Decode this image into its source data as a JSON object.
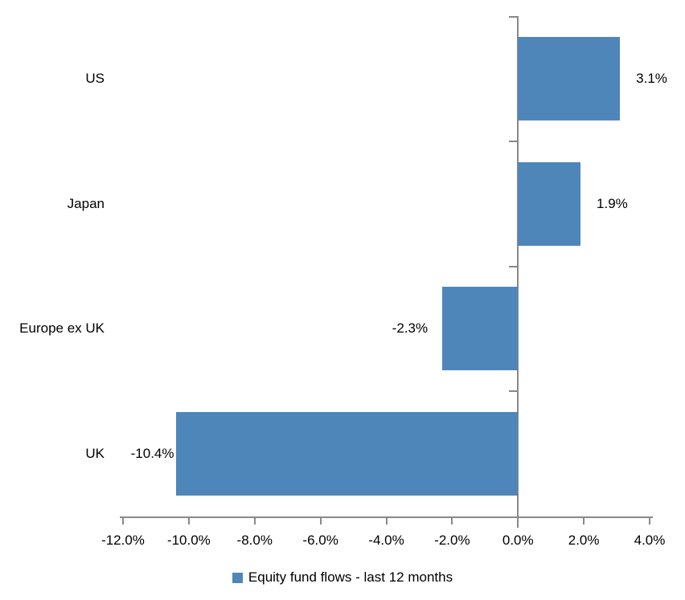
{
  "chart_data": {
    "type": "bar",
    "orientation": "horizontal",
    "title": "",
    "categories": [
      "US",
      "Japan",
      "Europe ex UK",
      "UK"
    ],
    "series": [
      {
        "name": "Equity fund flows - last 12 months",
        "values": [
          3.1,
          1.9,
          -2.3,
          -10.4
        ],
        "value_labels": [
          "3.1%",
          "1.9%",
          "-2.3%",
          "-10.4%"
        ]
      }
    ],
    "xlabel": "",
    "ylabel": "",
    "xlim": [
      -12,
      4
    ],
    "x_tick_step": 2,
    "x_tick_labels": [
      "-12.0%",
      "-10.0%",
      "-8.0%",
      "-6.0%",
      "-4.0%",
      "-2.0%",
      "0.0%",
      "2.0%",
      "4.0%"
    ],
    "grid": false,
    "legend": {
      "label": "Equity fund flows - last 12 months",
      "position": "bottom"
    },
    "colors": {
      "bar": "#4E86B9",
      "axis": "#898989",
      "text": "#000000",
      "background": "#FFFFFF"
    }
  }
}
